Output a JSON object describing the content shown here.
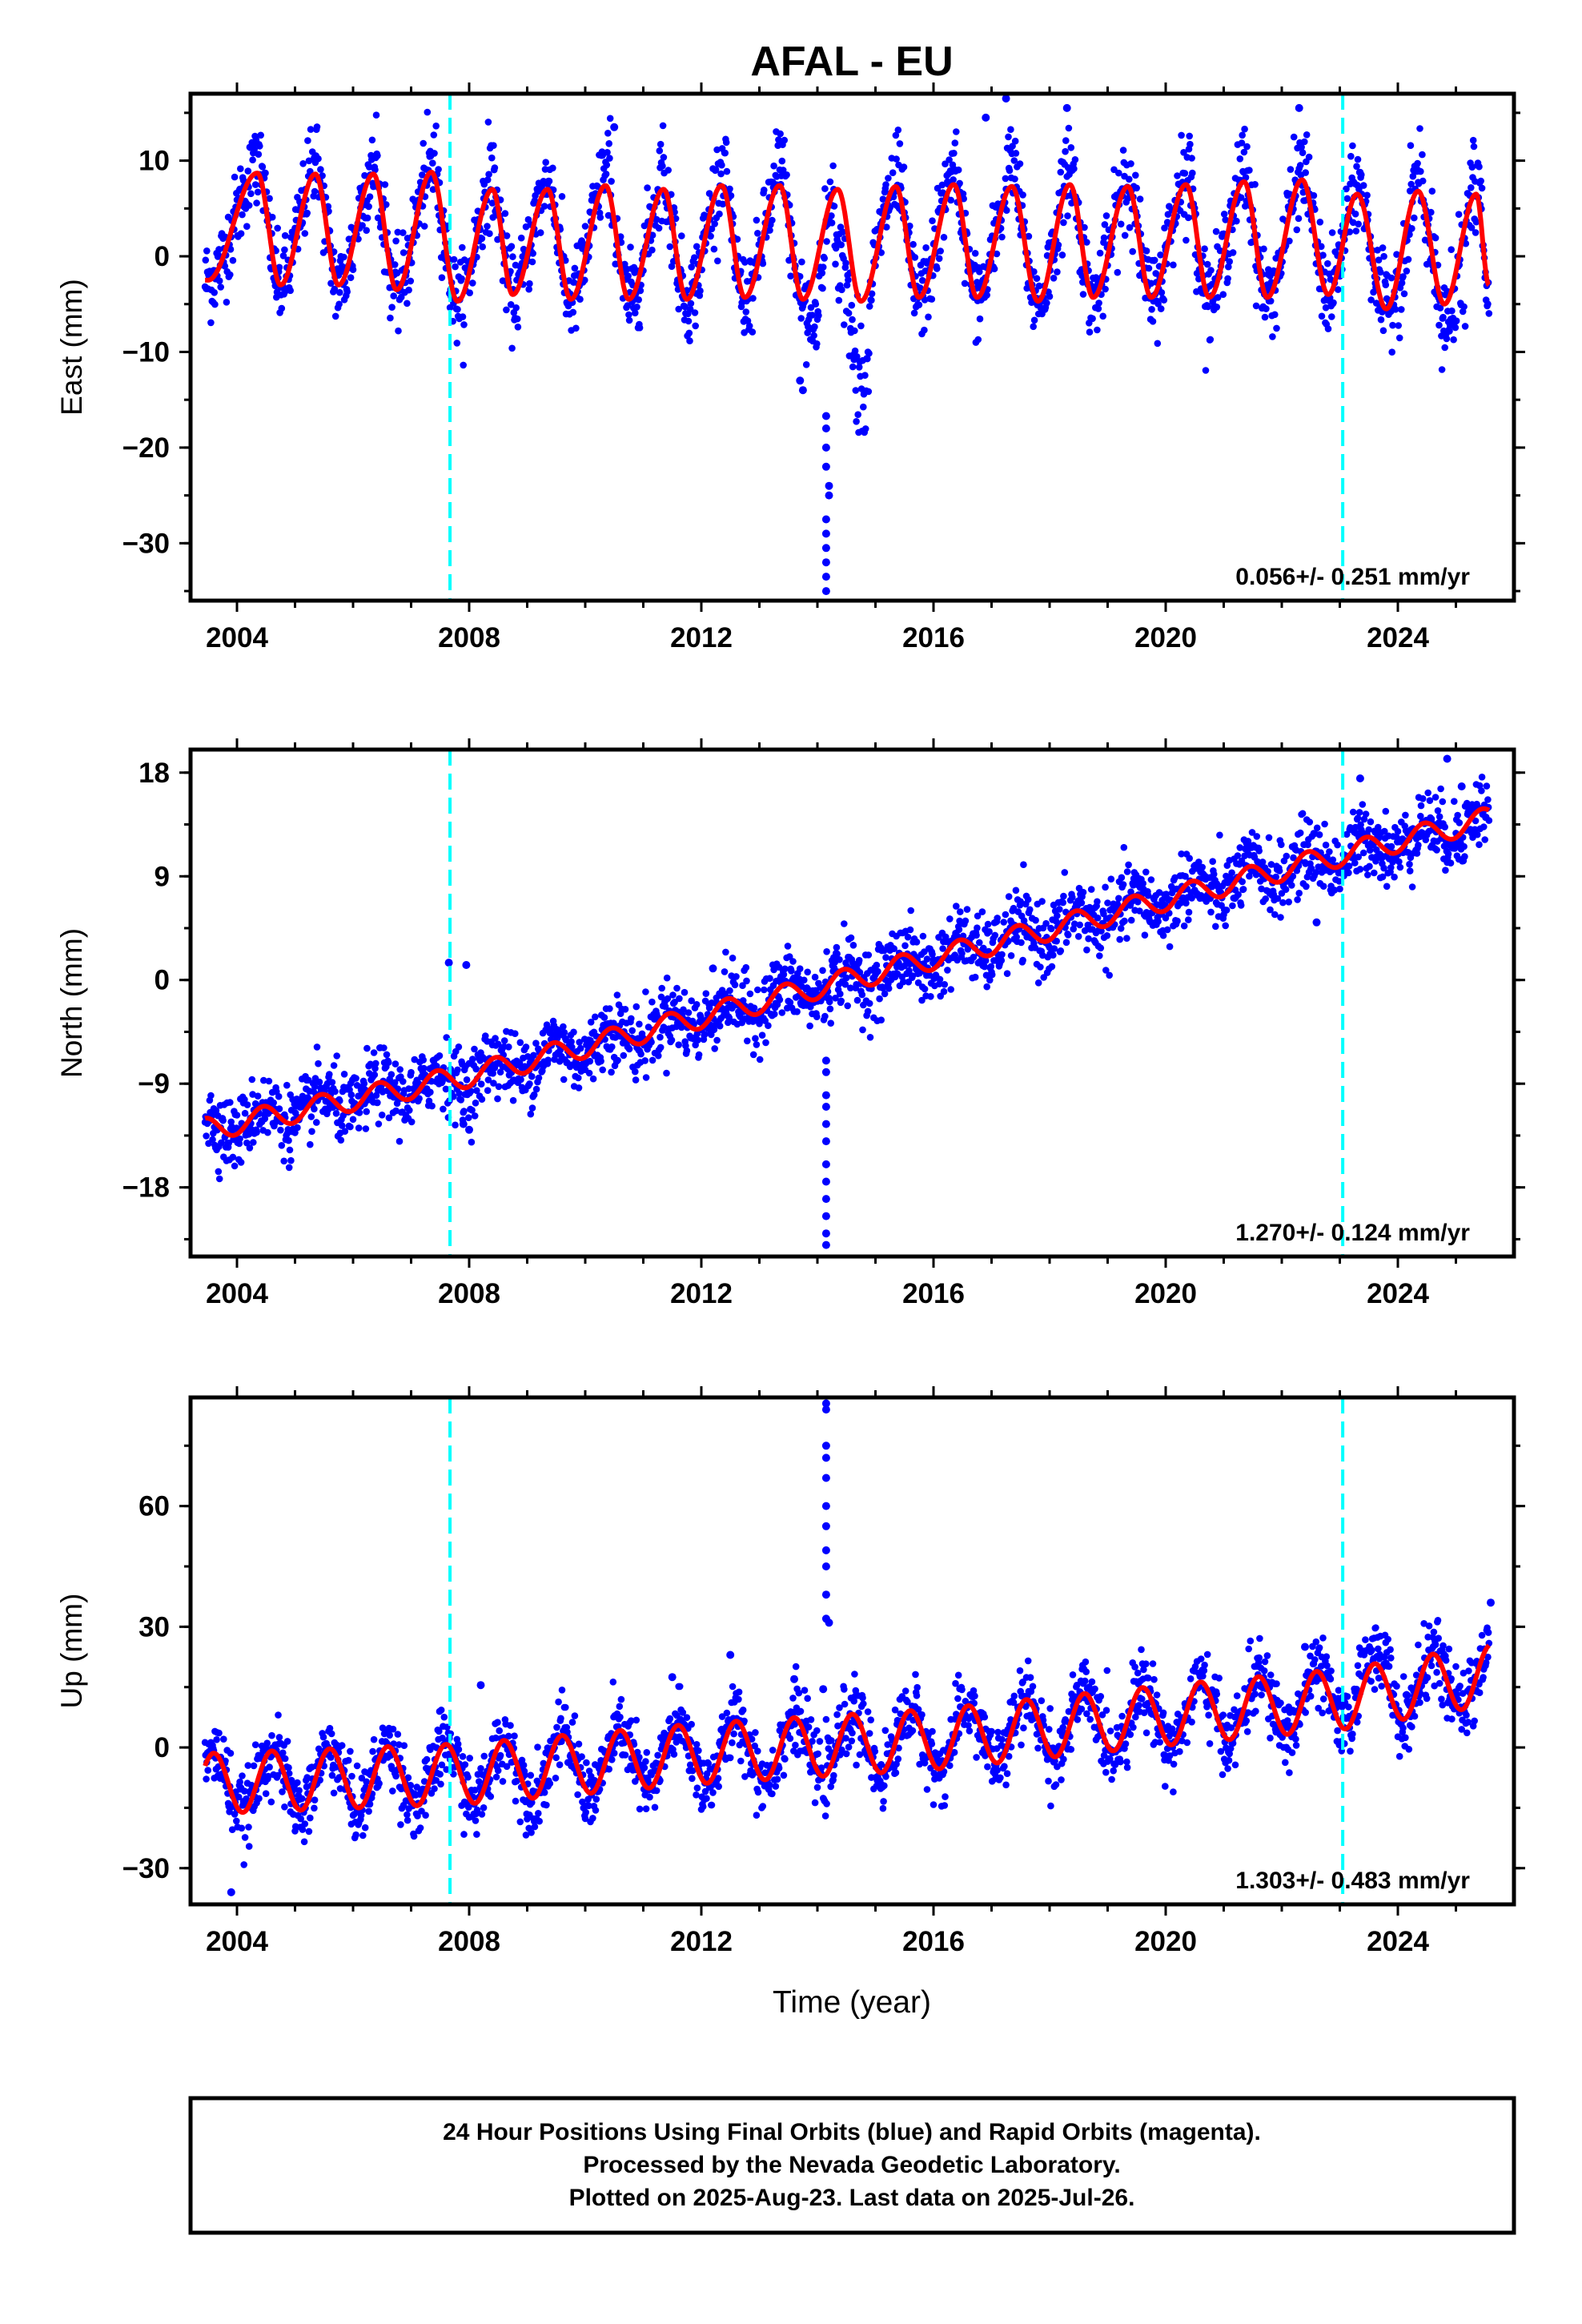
{
  "title": "AFAL - EU",
  "footer": {
    "lines": [
      "24 Hour Positions Using Final Orbits (blue) and Rapid Orbits (magenta).",
      "Processed by the Nevada Geodetic Laboratory.",
      "Plotted on 2025-Aug-23. Last data on 2025-Jul-26."
    ]
  },
  "colors": {
    "points": "#0000ff",
    "model": "#ff0000",
    "offset_lines": "#00ffff",
    "frame": "#000000"
  },
  "chart_data": [
    {
      "type": "scatter",
      "component": "East",
      "ylabel": "East (mm)",
      "xlabel": "",
      "xlim": [
        2003.2,
        2026.0
      ],
      "ylim": [
        -36,
        17
      ],
      "xticks": [
        "2004",
        "2008",
        "2012",
        "2016",
        "2020",
        "2024"
      ],
      "yticks": [
        "10",
        "0",
        "−10",
        "−20",
        "−30"
      ],
      "ytick_values": [
        10,
        0,
        -10,
        -20,
        -30
      ],
      "rate_label": "0.056+/- 0.251 mm/yr",
      "rate_mm_per_yr": 0.056,
      "offset_epochs": [
        2007.67,
        2023.05
      ],
      "series_start": 2003.45,
      "series_end": 2025.57,
      "seasonal_amplitude_mm": 6.0,
      "model_peaks": [
        [
          2004.35,
          8.7
        ],
        [
          2005.35,
          8.6
        ],
        [
          2006.35,
          8.6
        ],
        [
          2007.35,
          8.8
        ],
        [
          2008.4,
          7.0
        ],
        [
          2009.35,
          7.0
        ],
        [
          2010.35,
          7.4
        ],
        [
          2011.35,
          7.0
        ],
        [
          2012.35,
          7.4
        ],
        [
          2013.35,
          7.4
        ],
        [
          2014.35,
          7.0
        ],
        [
          2015.35,
          7.3
        ],
        [
          2016.35,
          7.5
        ],
        [
          2017.35,
          7.3
        ],
        [
          2018.35,
          7.5
        ],
        [
          2019.35,
          7.3
        ],
        [
          2020.35,
          7.5
        ],
        [
          2021.35,
          7.8
        ],
        [
          2022.35,
          8.0
        ],
        [
          2023.3,
          6.5
        ],
        [
          2024.35,
          6.8
        ],
        [
          2025.35,
          6.5
        ]
      ],
      "model_troughs": [
        [
          2003.5,
          -2.5
        ],
        [
          2004.75,
          -3.0
        ],
        [
          2005.75,
          -3.0
        ],
        [
          2006.75,
          -3.5
        ],
        [
          2007.8,
          -4.7
        ],
        [
          2008.75,
          -4.0
        ],
        [
          2009.75,
          -4.5
        ],
        [
          2010.75,
          -4.5
        ],
        [
          2011.75,
          -4.5
        ],
        [
          2012.75,
          -4.3
        ],
        [
          2013.75,
          -4.5
        ],
        [
          2014.75,
          -4.7
        ],
        [
          2015.75,
          -4.3
        ],
        [
          2016.75,
          -4.3
        ],
        [
          2017.8,
          -4.7
        ],
        [
          2018.75,
          -4.3
        ],
        [
          2019.75,
          -4.3
        ],
        [
          2020.75,
          -4.3
        ],
        [
          2021.75,
          -4.3
        ],
        [
          2022.8,
          -4.0
        ],
        [
          2023.8,
          -5.5
        ],
        [
          2024.8,
          -5.0
        ],
        [
          2025.57,
          -3.0
        ]
      ],
      "outliers": [
        [
          2014.15,
          -16.7
        ],
        [
          2014.15,
          -18.0
        ],
        [
          2014.15,
          -20.0
        ],
        [
          2014.15,
          -22.0
        ],
        [
          2014.15,
          -27.5
        ],
        [
          2014.15,
          -29.0
        ],
        [
          2014.15,
          -30.5
        ],
        [
          2014.15,
          -32.0
        ],
        [
          2014.15,
          -33.5
        ],
        [
          2014.15,
          -35.0
        ],
        [
          2014.2,
          -24.0
        ],
        [
          2014.2,
          -25.0
        ],
        [
          2013.7,
          -13.0
        ],
        [
          2013.75,
          -14.0
        ],
        [
          2016.9,
          14.5
        ],
        [
          2017.25,
          16.5
        ],
        [
          2018.3,
          15.5
        ],
        [
          2022.3,
          15.5
        ],
        [
          2010.5,
          13.5
        ]
      ]
    },
    {
      "type": "scatter",
      "component": "North",
      "ylabel": "North (mm)",
      "xlabel": "",
      "xlim": [
        2003.2,
        2026.0
      ],
      "ylim": [
        -24,
        20
      ],
      "xticks": [
        "2004",
        "2008",
        "2012",
        "2016",
        "2020",
        "2024"
      ],
      "yticks": [
        "18",
        "9",
        "0",
        "−9",
        "−18"
      ],
      "ytick_values": [
        18,
        9,
        0,
        -9,
        -18
      ],
      "rate_label": "1.270+/- 0.124 mm/yr",
      "rate_mm_per_yr": 1.27,
      "offset_epochs": [
        2007.67,
        2023.05
      ],
      "series_start": 2003.45,
      "series_end": 2025.57,
      "seasonal_amplitude_mm": 1.0,
      "model_trend": [
        [
          2003.45,
          -13.0
        ],
        [
          2008.0,
          -8.3
        ],
        [
          2012.0,
          -3.2
        ],
        [
          2016.0,
          1.9
        ],
        [
          2018.3,
          4.8
        ],
        [
          2020.0,
          7.0
        ],
        [
          2022.5,
          10.2
        ],
        [
          2023.05,
          10.9
        ],
        [
          2025.57,
          14.0
        ]
      ],
      "model_steps": [
        [
          2018.3,
          1.0
        ],
        [
          2023.05,
          -1.5
        ]
      ],
      "outliers": [
        [
          2014.15,
          -7.0
        ],
        [
          2014.15,
          -8.0
        ],
        [
          2014.15,
          -10.0
        ],
        [
          2014.15,
          -11.0
        ],
        [
          2014.15,
          -12.5
        ],
        [
          2014.15,
          -14.0
        ],
        [
          2014.15,
          -16.0
        ],
        [
          2014.15,
          -17.5
        ],
        [
          2014.15,
          -19.0
        ],
        [
          2014.15,
          -20.5
        ],
        [
          2014.15,
          -22.0
        ],
        [
          2014.15,
          -23.0
        ],
        [
          2007.65,
          1.5
        ],
        [
          2007.95,
          1.3
        ],
        [
          2012.2,
          1.0
        ],
        [
          2022.6,
          5.0
        ],
        [
          2024.85,
          19.2
        ],
        [
          2023.35,
          17.5
        ],
        [
          2025.1,
          16.8
        ],
        [
          2008.0,
          -13.0
        ],
        [
          2007.9,
          -12.5
        ]
      ]
    },
    {
      "type": "scatter",
      "component": "Up",
      "ylabel": "Up (mm)",
      "xlabel": "Time (year)",
      "xlim": [
        2003.2,
        2026.0
      ],
      "ylim": [
        -39,
        87
      ],
      "xticks": [
        "2004",
        "2008",
        "2012",
        "2016",
        "2020",
        "2024"
      ],
      "yticks": [
        "60",
        "30",
        "0",
        "−30"
      ],
      "ytick_values": [
        60,
        30,
        0,
        -30
      ],
      "rate_label": "1.303+/- 0.483 mm/yr",
      "rate_mm_per_yr": 1.303,
      "offset_epochs": [
        2007.67,
        2023.05
      ],
      "series_start": 2003.45,
      "series_end": 2025.57,
      "seasonal_amplitude_mm": 7.5,
      "model_trend": [
        [
          2003.45,
          -9.0
        ],
        [
          2008.0,
          -6.5
        ],
        [
          2012.0,
          -1.5
        ],
        [
          2016.0,
          2.0
        ],
        [
          2020.0,
          8.0
        ],
        [
          2023.05,
          12.0
        ],
        [
          2025.57,
          18.0
        ]
      ],
      "outliers": [
        [
          2014.15,
          32.0
        ],
        [
          2014.15,
          38.0
        ],
        [
          2014.15,
          45.0
        ],
        [
          2014.15,
          49.0
        ],
        [
          2014.15,
          55.0
        ],
        [
          2014.15,
          60.0
        ],
        [
          2014.15,
          67.0
        ],
        [
          2014.15,
          72.0
        ],
        [
          2014.15,
          75.0
        ],
        [
          2014.15,
          84.0
        ],
        [
          2014.15,
          85.5
        ],
        [
          2014.2,
          31.0
        ],
        [
          2003.9,
          -36.0
        ],
        [
          2012.5,
          23.0
        ],
        [
          2013.6,
          17.0
        ],
        [
          2014.1,
          14.5
        ],
        [
          2008.2,
          15.5
        ],
        [
          2011.5,
          17.5
        ],
        [
          2022.4,
          25.0
        ],
        [
          2025.6,
          36.0
        ]
      ]
    }
  ]
}
